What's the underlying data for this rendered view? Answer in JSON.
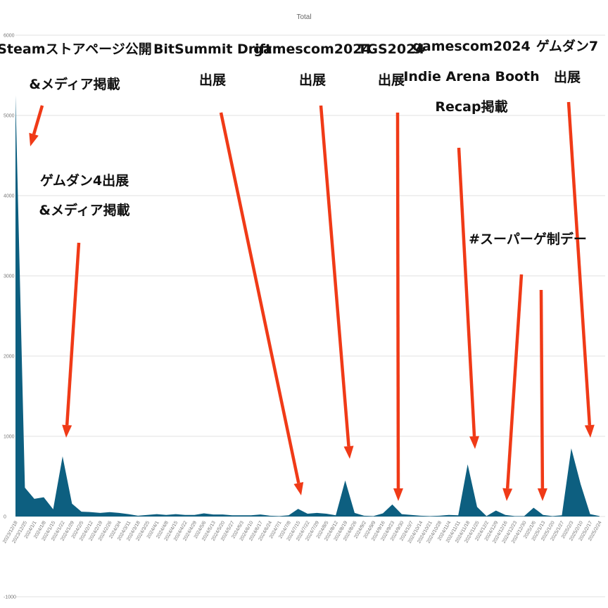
{
  "chart_data": {
    "type": "area",
    "title": "Total",
    "ylim": [
      -1000,
      6000
    ],
    "yticks": [
      -1000,
      0,
      1000,
      2000,
      3000,
      4000,
      5000,
      6000
    ],
    "grid": true,
    "series_color": "#0d5f80",
    "arrow_color": "#f03a17",
    "x": [
      "2023/12/18",
      "2023/12/25",
      "2024/1/1",
      "2024/1/8",
      "2024/1/15",
      "2024/1/22",
      "2024/1/29",
      "2024/2/5",
      "2024/2/12",
      "2024/2/19",
      "2024/2/26",
      "2024/3/4",
      "2024/3/11",
      "2024/3/18",
      "2024/3/25",
      "2024/4/1",
      "2024/4/8",
      "2024/4/15",
      "2024/4/22",
      "2024/4/29",
      "2024/5/6",
      "2024/5/13",
      "2024/5/20",
      "2024/5/27",
      "2024/6/3",
      "2024/6/10",
      "2024/6/17",
      "2024/6/24",
      "2024/7/1",
      "2024/7/8",
      "2024/7/15",
      "2024/7/22",
      "2024/7/29",
      "2024/8/5",
      "2024/8/12",
      "2024/8/19",
      "2024/8/26",
      "2024/9/2",
      "2024/9/9",
      "2024/9/16",
      "2024/9/23",
      "2024/9/30",
      "2024/10/7",
      "2024/10/14",
      "2024/10/21",
      "2024/10/28",
      "2024/11/4",
      "2024/11/11",
      "2024/11/18",
      "2024/11/25",
      "2024/12/2",
      "2024/12/9",
      "2024/12/16",
      "2024/12/23",
      "2024/12/30",
      "2025/1/6",
      "2025/1/13",
      "2025/1/20",
      "2025/1/27",
      "2025/2/3",
      "2025/2/10",
      "2025/2/17",
      "2025/2/24"
    ],
    "values": [
      5250,
      360,
      220,
      240,
      90,
      750,
      160,
      60,
      55,
      45,
      55,
      45,
      30,
      10,
      20,
      30,
      20,
      30,
      20,
      20,
      40,
      25,
      25,
      15,
      15,
      15,
      25,
      10,
      5,
      15,
      95,
      35,
      45,
      35,
      15,
      450,
      45,
      10,
      5,
      40,
      150,
      30,
      20,
      10,
      5,
      10,
      20,
      15,
      650,
      120,
      5,
      75,
      20,
      5,
      5,
      110,
      20,
      5,
      15,
      850,
      400,
      30,
      5
    ]
  },
  "annotations": [
    {
      "lines": [
        "Steamストアページ公開",
        "&メディア掲載"
      ]
    },
    {
      "lines": [
        "ゲムダン4出展",
        "&メディア掲載"
      ]
    },
    {
      "lines": [
        "BitSummit Drift",
        "出展"
      ]
    },
    {
      "lines": [
        "gamescom2024",
        "出展"
      ]
    },
    {
      "lines": [
        "TGS2024",
        "出展"
      ]
    },
    {
      "lines": [
        "gamescom2024",
        "Indie Arena Booth",
        "Recap掲載"
      ]
    },
    {
      "lines": [
        "#スーパーゲ制デー"
      ]
    },
    {
      "lines": [
        "ゲムダン7",
        "出展"
      ]
    }
  ]
}
